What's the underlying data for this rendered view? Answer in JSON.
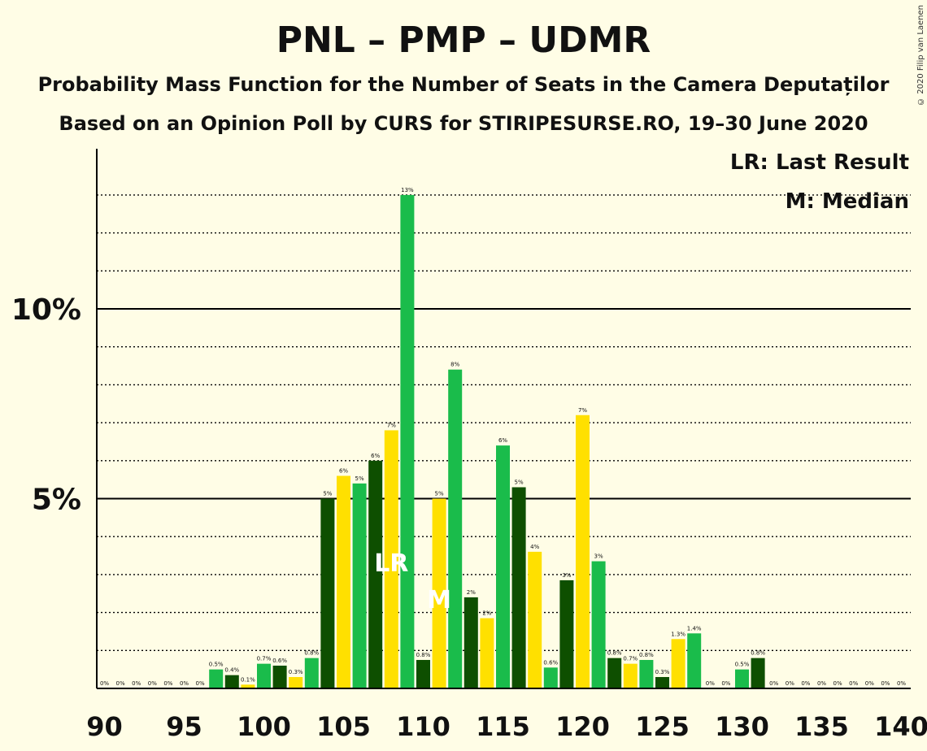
{
  "title": "PNL – PMP – UDMR",
  "subtitle1": "Probability Mass Function for the Number of Seats in the Camera Deputaților",
  "subtitle2": "Based on an Opinion Poll by CURS for STIRIPESURSE.RO, 19–30 June 2020",
  "copyright": "© 2020 Filip van Laenen",
  "legend": {
    "lr": "LR: Last Result",
    "m": "M: Median"
  },
  "colors": {
    "dark": "#0E4F00",
    "green": "#1ABC4B",
    "yellow": "#FFE000",
    "background": "#FFFDE6"
  },
  "chart_data": {
    "type": "bar",
    "title": "PNL – PMP – UDMR",
    "xlabel": "",
    "ylabel": "",
    "x_ticks": [
      "90",
      "95",
      "100",
      "105",
      "110",
      "115",
      "120",
      "125",
      "130",
      "135",
      "140"
    ],
    "y_ticks": [
      "5%",
      "10%"
    ],
    "ylim": [
      0,
      14.3
    ],
    "grid": "dotted 1% lines, solid at 5% and 10%",
    "seats": [
      90,
      91,
      92,
      93,
      94,
      95,
      96,
      97,
      98,
      99,
      100,
      101,
      102,
      103,
      104,
      105,
      106,
      107,
      108,
      109,
      110,
      111,
      112,
      113,
      114,
      115,
      116,
      117,
      118,
      119,
      120,
      121,
      122,
      123,
      124,
      125,
      126,
      127,
      128,
      129,
      130,
      131,
      132,
      133,
      134,
      135,
      136,
      137,
      138,
      139,
      140
    ],
    "values": [
      0,
      0,
      0,
      0,
      0,
      0,
      0,
      0.5,
      0.35,
      0.1,
      0.65,
      0.6,
      0.3,
      0.8,
      5,
      5.6,
      5.4,
      6,
      6.8,
      13,
      0.75,
      5,
      8.4,
      2.4,
      1.85,
      6.4,
      5.3,
      3.6,
      0.55,
      2.85,
      7.2,
      3.35,
      0.8,
      0.65,
      0.75,
      0.3,
      1.3,
      1.45,
      0,
      0,
      0.5,
      0.8,
      0,
      0,
      0,
      0,
      0,
      0,
      0,
      0,
      0
    ],
    "labels": [
      "0%",
      "0%",
      "0%",
      "0%",
      "0%",
      "0%",
      "0%",
      "0.5%",
      "0.4%",
      "0.1%",
      "0.7%",
      "0.6%",
      "0.3%",
      "0.8%",
      "5%",
      "6%",
      "5%",
      "6%",
      "7%",
      "13%",
      "0.8%",
      "5%",
      "8%",
      "2%",
      "2%",
      "6%",
      "5%",
      "4%",
      "0.6%",
      "3%",
      "7%",
      "3%",
      "0.8%",
      "0.7%",
      "0.8%",
      "0.3%",
      "1.3%",
      "1.4%",
      "0%",
      "0%",
      "0.5%",
      "0.8%",
      "0%",
      "0%",
      "0%",
      "0%",
      "0%",
      "0%",
      "0%",
      "0%",
      "0%"
    ],
    "last_result_seat": 108,
    "median_seat": 111,
    "last_result_marker": "LR",
    "median_marker": "M"
  }
}
